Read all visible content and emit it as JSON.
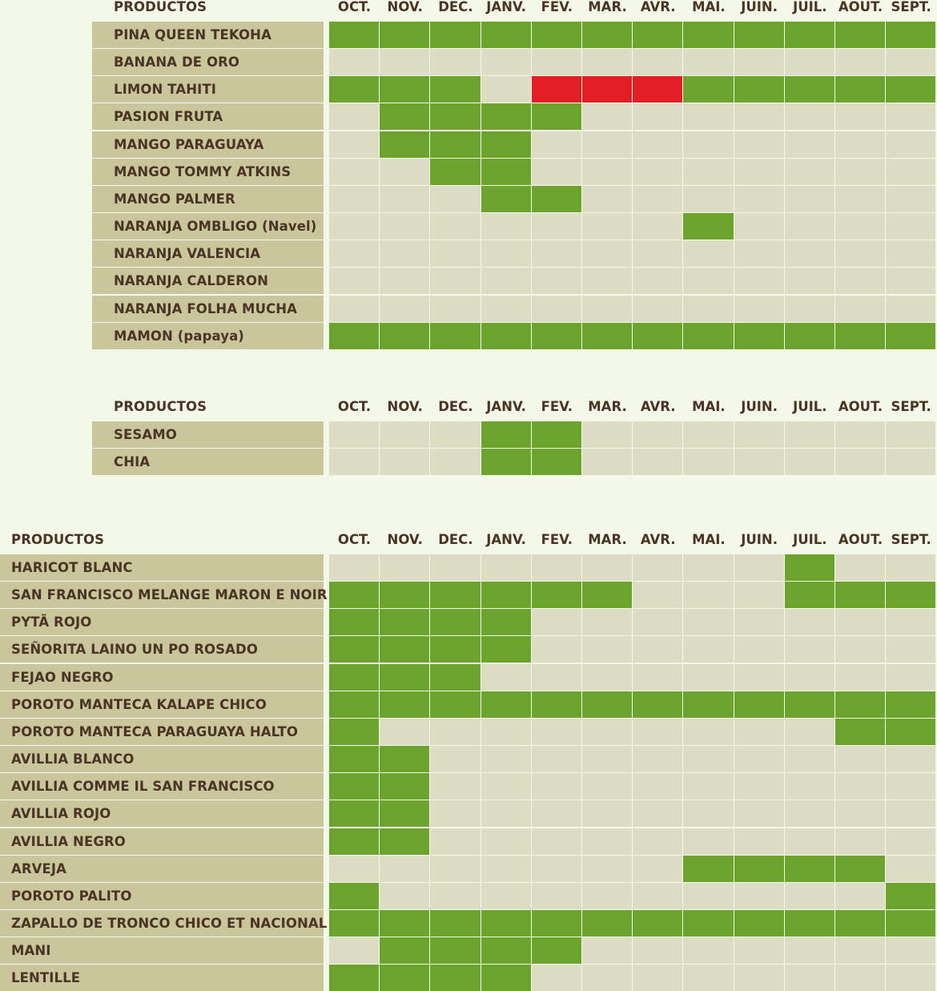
{
  "months": [
    "OCT.",
    "NOV.",
    "DEC.",
    "JANV.",
    "FEV.",
    "MAR.",
    "AVR.",
    "MAI.",
    "JUIN.",
    "JUIL.",
    "AOUT.",
    "SEPT."
  ],
  "colors": {
    "available": "#6ba32c",
    "unavailable": "#e31d24",
    "none": "#dddcc4",
    "label_bg": "#cac69c",
    "page_bg": "#f3f8e9",
    "text": "#4a3424"
  },
  "sections": [
    {
      "header": "PRODUCTOS",
      "rows": [
        {
          "name": "PINA QUEEN TEKOHA",
          "cells": [
            "G",
            "G",
            "G",
            "G",
            "G",
            "G",
            "G",
            "G",
            "G",
            "G",
            "G",
            "G"
          ]
        },
        {
          "name": "BANANA DE ORO",
          "cells": [
            "E",
            "E",
            "E",
            "E",
            "E",
            "E",
            "E",
            "E",
            "E",
            "E",
            "E",
            "E"
          ]
        },
        {
          "name": "LIMON TAHITI",
          "cells": [
            "G",
            "G",
            "G",
            "E",
            "R",
            "R",
            "R",
            "G",
            "G",
            "G",
            "G",
            "G"
          ]
        },
        {
          "name": "PASION FRUTA",
          "cells": [
            "E",
            "G",
            "G",
            "G",
            "G",
            "E",
            "E",
            "E",
            "E",
            "E",
            "E",
            "E"
          ]
        },
        {
          "name": "MANGO PARAGUAYA",
          "cells": [
            "E",
            "G",
            "G",
            "G",
            "E",
            "E",
            "E",
            "E",
            "E",
            "E",
            "E",
            "E"
          ]
        },
        {
          "name": "MANGO TOMMY ATKINS",
          "cells": [
            "E",
            "E",
            "G",
            "G",
            "E",
            "E",
            "E",
            "E",
            "E",
            "E",
            "E",
            "E"
          ]
        },
        {
          "name": "MANGO PALMER",
          "cells": [
            "E",
            "E",
            "E",
            "G",
            "G",
            "E",
            "E",
            "E",
            "E",
            "E",
            "E",
            "E"
          ]
        },
        {
          "name": "NARANJA OMBLIGO (Navel)",
          "cells": [
            "E",
            "E",
            "E",
            "E",
            "E",
            "E",
            "E",
            "G",
            "E",
            "E",
            "E",
            "E"
          ]
        },
        {
          "name": "NARANJA VALENCIA",
          "cells": [
            "E",
            "E",
            "E",
            "E",
            "E",
            "E",
            "E",
            "E",
            "E",
            "E",
            "E",
            "E"
          ]
        },
        {
          "name": "NARANJA CALDERON",
          "cells": [
            "E",
            "E",
            "E",
            "E",
            "E",
            "E",
            "E",
            "E",
            "E",
            "E",
            "E",
            "E"
          ]
        },
        {
          "name": "NARANJA FOLHA MUCHA",
          "cells": [
            "E",
            "E",
            "E",
            "E",
            "E",
            "E",
            "E",
            "E",
            "E",
            "E",
            "E",
            "E"
          ]
        },
        {
          "name": "MAMON (papaya)",
          "cells": [
            "G",
            "G",
            "G",
            "G",
            "G",
            "G",
            "G",
            "G",
            "G",
            "G",
            "G",
            "G"
          ]
        }
      ]
    },
    {
      "header": "PRODUCTOS",
      "rows": [
        {
          "name": "SESAMO",
          "cells": [
            "E",
            "E",
            "E",
            "G",
            "G",
            "E",
            "E",
            "E",
            "E",
            "E",
            "E",
            "E"
          ]
        },
        {
          "name": "CHIA",
          "cells": [
            "E",
            "E",
            "E",
            "G",
            "G",
            "E",
            "E",
            "E",
            "E",
            "E",
            "E",
            "E"
          ]
        }
      ]
    },
    {
      "header": "PRODUCTOS",
      "rows": [
        {
          "name": "HARICOT BLANC",
          "cells": [
            "E",
            "E",
            "E",
            "E",
            "E",
            "E",
            "E",
            "E",
            "E",
            "G",
            "E",
            "E"
          ]
        },
        {
          "name": "SAN FRANCISCO MELANGE MARON E NOIR",
          "cells": [
            "G",
            "G",
            "G",
            "G",
            "G",
            "G",
            "E",
            "E",
            "E",
            "G",
            "G",
            "G"
          ]
        },
        {
          "name": "PYTÃ ROJO",
          "cells": [
            "G",
            "G",
            "G",
            "G",
            "E",
            "E",
            "E",
            "E",
            "E",
            "E",
            "E",
            "E"
          ]
        },
        {
          "name": "SEÑORITA LAINO UN PO ROSADO",
          "cells": [
            "G",
            "G",
            "G",
            "G",
            "E",
            "E",
            "E",
            "E",
            "E",
            "E",
            "E",
            "E"
          ]
        },
        {
          "name": "FEJAO NEGRO",
          "cells": [
            "G",
            "G",
            "G",
            "E",
            "E",
            "E",
            "E",
            "E",
            "E",
            "E",
            "E",
            "E"
          ]
        },
        {
          "name": "POROTO MANTECA KALAPE CHICO",
          "cells": [
            "G",
            "G",
            "G",
            "G",
            "G",
            "G",
            "G",
            "G",
            "G",
            "G",
            "G",
            "G"
          ]
        },
        {
          "name": "POROTO MANTECA PARAGUAYA HALTO",
          "cells": [
            "G",
            "E",
            "E",
            "E",
            "E",
            "E",
            "E",
            "E",
            "E",
            "E",
            "G",
            "G"
          ]
        },
        {
          "name": "AVILLIA BLANCO",
          "cells": [
            "G",
            "G",
            "E",
            "E",
            "E",
            "E",
            "E",
            "E",
            "E",
            "E",
            "E",
            "E"
          ]
        },
        {
          "name": "AVILLIA COMME IL SAN FRANCISCO",
          "cells": [
            "G",
            "G",
            "E",
            "E",
            "E",
            "E",
            "E",
            "E",
            "E",
            "E",
            "E",
            "E"
          ]
        },
        {
          "name": "AVILLIA  ROJO",
          "cells": [
            "G",
            "G",
            "E",
            "E",
            "E",
            "E",
            "E",
            "E",
            "E",
            "E",
            "E",
            "E"
          ]
        },
        {
          "name": "AVILLIA NEGRO",
          "cells": [
            "G",
            "G",
            "E",
            "E",
            "E",
            "E",
            "E",
            "E",
            "E",
            "E",
            "E",
            "E"
          ]
        },
        {
          "name": "ARVEJA",
          "cells": [
            "E",
            "E",
            "E",
            "E",
            "E",
            "E",
            "E",
            "G",
            "G",
            "G",
            "G",
            "E"
          ]
        },
        {
          "name": "POROTO PALITO",
          "cells": [
            "G",
            "E",
            "E",
            "E",
            "E",
            "E",
            "E",
            "E",
            "E",
            "E",
            "E",
            "G"
          ]
        },
        {
          "name": "ZAPALLO DE TRONCO CHICO ET NACIONAL",
          "cells": [
            "G",
            "G",
            "G",
            "G",
            "G",
            "G",
            "G",
            "G",
            "G",
            "G",
            "G",
            "G"
          ]
        },
        {
          "name": "MANI",
          "cells": [
            "E",
            "G",
            "G",
            "G",
            "G",
            "E",
            "E",
            "E",
            "E",
            "E",
            "E",
            "E"
          ]
        },
        {
          "name": "LENTILLE",
          "cells": [
            "G",
            "G",
            "G",
            "G",
            "E",
            "E",
            "E",
            "E",
            "E",
            "E",
            "E",
            "E"
          ]
        }
      ]
    }
  ]
}
